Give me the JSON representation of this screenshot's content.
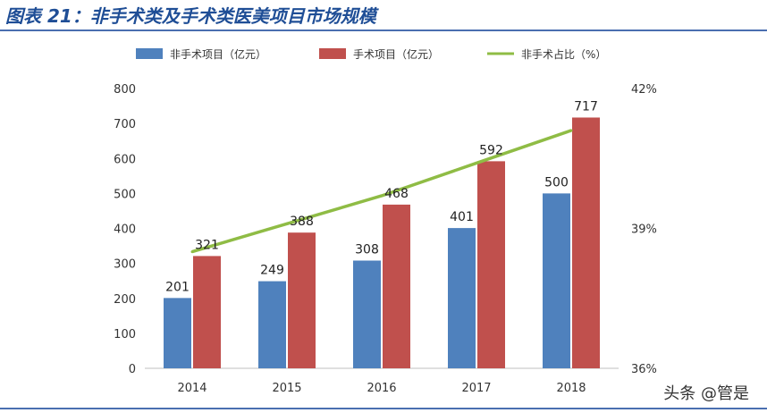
{
  "header": {
    "figure_title": "图表 21：非手术类及手术类医美项目市场规模"
  },
  "watermark": "头条 @管是",
  "chart_data": {
    "type": "bar",
    "categories": [
      "2014",
      "2015",
      "2016",
      "2017",
      "2018"
    ],
    "series": [
      {
        "name": "非手术项目（亿元）",
        "type": "bar",
        "axis": "left",
        "color": "#4f81bd",
        "values": [
          201,
          249,
          308,
          401,
          500
        ]
      },
      {
        "name": "手术项目（亿元）",
        "type": "bar",
        "axis": "left",
        "color": "#c0504d",
        "values": [
          321,
          388,
          468,
          592,
          717
        ]
      },
      {
        "name": "非手术占比（%）",
        "type": "line",
        "axis": "right",
        "color": "#8fbc45",
        "values": [
          38.5,
          39.1,
          39.7,
          40.4,
          41.1
        ]
      }
    ],
    "y_left": {
      "lim": [
        0,
        800
      ],
      "ticks": [
        "0",
        "100",
        "200",
        "300",
        "400",
        "500",
        "600",
        "700",
        "800"
      ]
    },
    "y_right": {
      "lim": [
        36,
        42
      ],
      "ticks": [
        "36%",
        "39%",
        "42%"
      ]
    },
    "legend_position": "top",
    "grid": false
  }
}
